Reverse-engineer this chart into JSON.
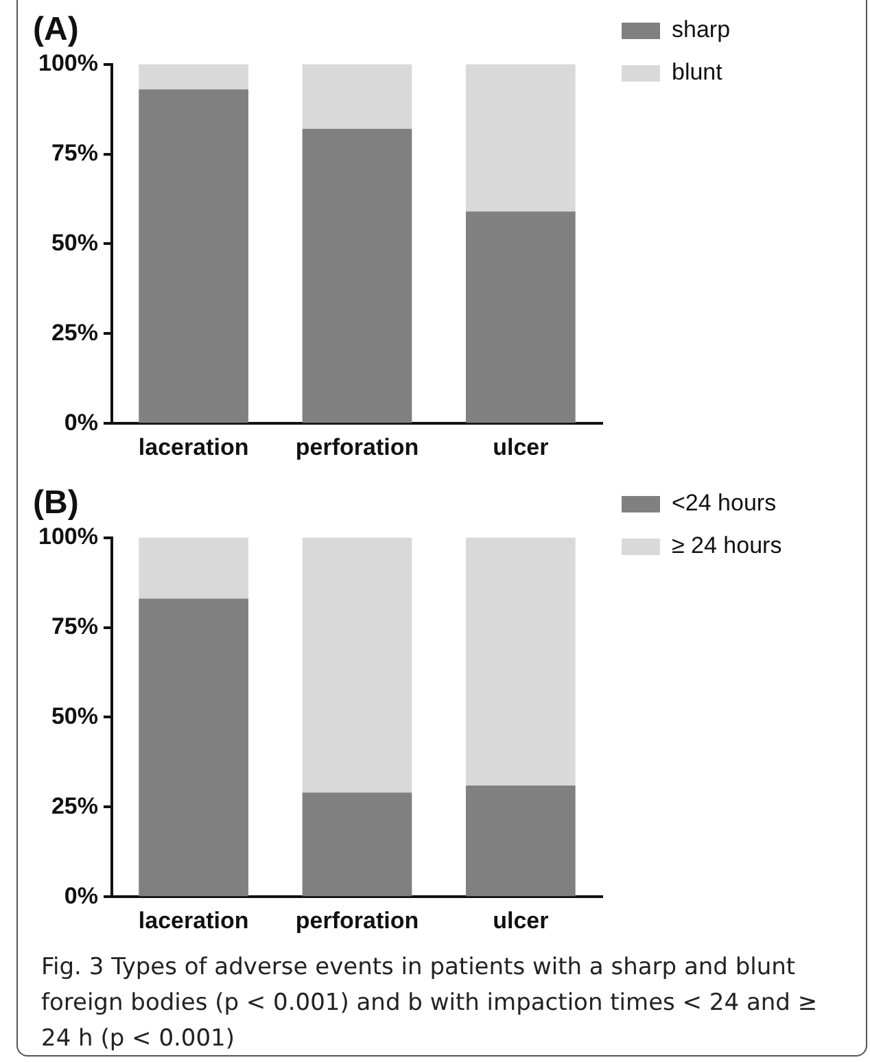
{
  "chart_data": [
    {
      "type": "bar",
      "title": "(A)",
      "stacked": true,
      "categories": [
        "laceration",
        "perforation",
        "ulcer"
      ],
      "series": [
        {
          "name": "sharp",
          "color": "#808080",
          "values": [
            93,
            82,
            59
          ]
        },
        {
          "name": "blunt",
          "color": "#d9d9d9",
          "values": [
            7,
            18,
            41
          ]
        }
      ],
      "ylim": [
        0,
        100
      ],
      "yticks": [
        {
          "value": 0,
          "label": "0%"
        },
        {
          "value": 25,
          "label": "25%"
        },
        {
          "value": 50,
          "label": "50%"
        },
        {
          "value": 75,
          "label": "75%"
        },
        {
          "value": 100,
          "label": "100%"
        }
      ],
      "grid": false,
      "legend": "top right"
    },
    {
      "type": "bar",
      "title": "(B)",
      "stacked": true,
      "categories": [
        "laceration",
        "perforation",
        "ulcer"
      ],
      "series": [
        {
          "name": "<24 hours",
          "color": "#808080",
          "values": [
            83,
            29,
            31
          ]
        },
        {
          "name": "≥ 24 hours",
          "color": "#d9d9d9",
          "values": [
            17,
            71,
            69
          ]
        }
      ],
      "ylim": [
        0,
        100
      ],
      "yticks": [
        {
          "value": 0,
          "label": "0%"
        },
        {
          "value": 25,
          "label": "25%"
        },
        {
          "value": 50,
          "label": "50%"
        },
        {
          "value": 75,
          "label": "75%"
        },
        {
          "value": 100,
          "label": "100%"
        }
      ],
      "grid": false,
      "legend": "top right",
      "annotations": [
        "Fig. 3 Types of adverse events in patients with a sharp and blunt foreign bodies (p < 0.001) and b with impaction times < 24 and ≥ 24 h (p < 0.001)"
      ]
    }
  ]
}
